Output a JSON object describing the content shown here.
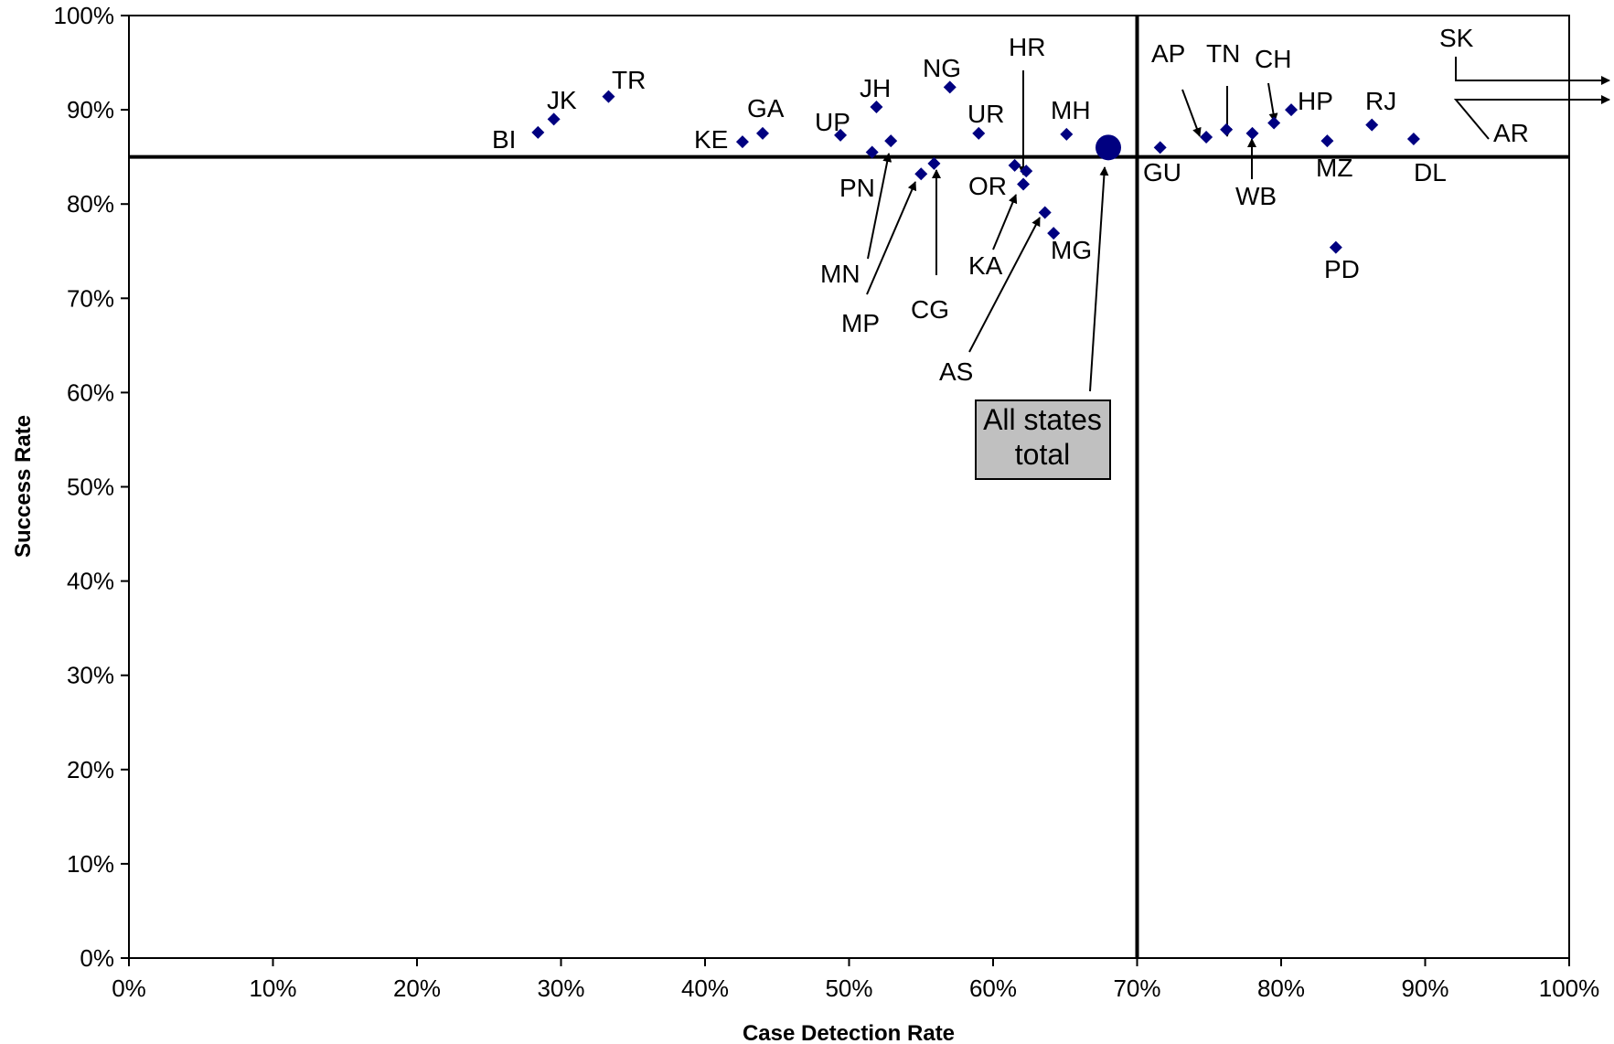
{
  "chart_data": {
    "type": "scatter",
    "xlabel": "Case Detection Rate",
    "ylabel": "Success Rate",
    "xlim": [
      0,
      100
    ],
    "ylim": [
      0,
      100
    ],
    "x_ticks": [
      "0%",
      "10%",
      "20%",
      "30%",
      "40%",
      "50%",
      "60%",
      "70%",
      "80%",
      "90%",
      "100%"
    ],
    "y_ticks": [
      "0%",
      "10%",
      "20%",
      "30%",
      "40%",
      "50%",
      "60%",
      "70%",
      "80%",
      "90%",
      "100%"
    ],
    "grid": false,
    "reference_lines": {
      "x": 70,
      "y": 85
    },
    "marker_color": "#000080",
    "points": [
      {
        "label": "BI",
        "x": 28.4,
        "y": 87.6
      },
      {
        "label": "JK",
        "x": 29.5,
        "y": 89.0
      },
      {
        "label": "TR",
        "x": 33.3,
        "y": 91.4
      },
      {
        "label": "KE",
        "x": 42.6,
        "y": 86.6
      },
      {
        "label": "GA",
        "x": 44.0,
        "y": 87.5
      },
      {
        "label": "UP",
        "x": 49.4,
        "y": 87.3
      },
      {
        "label": "PN",
        "x": 51.6,
        "y": 85.5
      },
      {
        "label": "JH",
        "x": 51.9,
        "y": 90.3
      },
      {
        "label": "MN",
        "x": 52.9,
        "y": 86.7
      },
      {
        "label": "MP",
        "x": 55.0,
        "y": 83.2
      },
      {
        "label": "CG",
        "x": 55.9,
        "y": 84.3
      },
      {
        "label": "NG",
        "x": 57.0,
        "y": 92.4
      },
      {
        "label": "UR",
        "x": 59.0,
        "y": 87.5
      },
      {
        "label": "KA",
        "x": 61.5,
        "y": 84.1
      },
      {
        "label": "OR",
        "x": 62.1,
        "y": 82.1
      },
      {
        "label": "HR",
        "x": 62.3,
        "y": 83.5
      },
      {
        "label": "AS",
        "x": 63.6,
        "y": 79.1
      },
      {
        "label": "MG",
        "x": 64.2,
        "y": 76.9
      },
      {
        "label": "MH",
        "x": 65.1,
        "y": 87.4
      },
      {
        "label": "GU",
        "x": 71.6,
        "y": 86.0
      },
      {
        "label": "AP",
        "x": 74.8,
        "y": 87.1
      },
      {
        "label": "TN",
        "x": 76.2,
        "y": 87.9
      },
      {
        "label": "WB",
        "x": 78.0,
        "y": 87.5
      },
      {
        "label": "CH",
        "x": 79.5,
        "y": 88.6
      },
      {
        "label": "HP",
        "x": 80.7,
        "y": 90.0
      },
      {
        "label": "MZ",
        "x": 83.2,
        "y": 86.7
      },
      {
        "label": "PD",
        "x": 83.8,
        "y": 75.4
      },
      {
        "label": "RJ",
        "x": 86.3,
        "y": 88.4
      },
      {
        "label": "DL",
        "x": 89.2,
        "y": 86.9
      }
    ],
    "total_point": {
      "x": 68.0,
      "y": 86.0
    },
    "total_box_lines": [
      "All states",
      "total"
    ],
    "offchart_labels": [
      "SK",
      "AR"
    ]
  }
}
